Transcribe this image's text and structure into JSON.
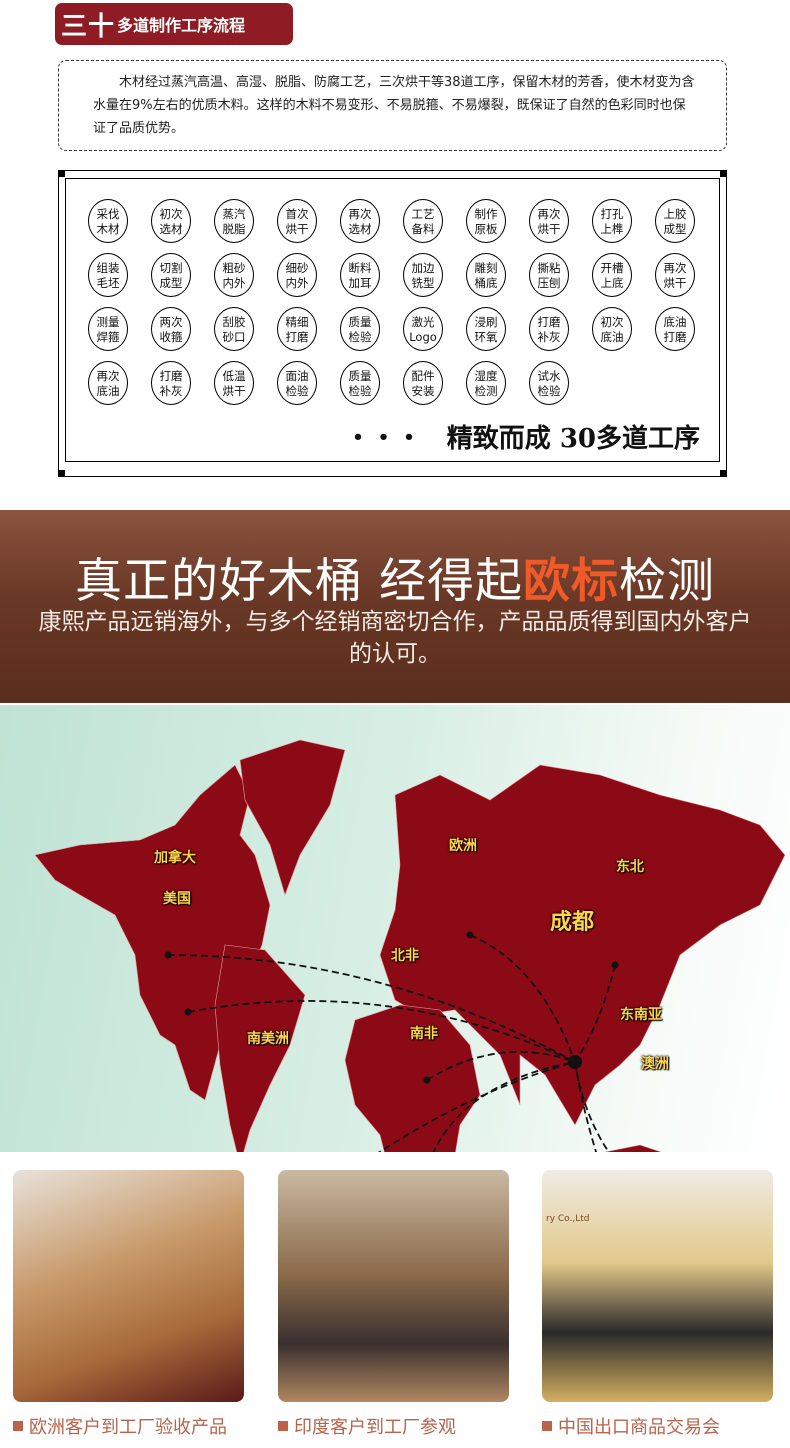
{
  "section_title": {
    "big": "三十",
    "small": "多道制作工序流程"
  },
  "intro_text": "木材经过蒸汽高温、高湿、脱脂、防腐工艺，三次烘干等38道工序，保留木材的芳香，使木材变为含水量在9%左右的优质木料。这样的木料不易变形、不易脱箍、不易爆裂，既保证了自然的色彩同时也保证了品质优势。",
  "steps": [
    [
      "采伐",
      "木材"
    ],
    [
      "初次",
      "选材"
    ],
    [
      "蒸汽",
      "脱脂"
    ],
    [
      "首次",
      "烘干"
    ],
    [
      "再次",
      "选材"
    ],
    [
      "工艺",
      "备料"
    ],
    [
      "制作",
      "原板"
    ],
    [
      "再次",
      "烘干"
    ],
    [
      "打孔",
      "上榫"
    ],
    [
      "上胶",
      "成型"
    ],
    [
      "组装",
      "毛坯"
    ],
    [
      "切割",
      "成型"
    ],
    [
      "粗砂",
      "内外"
    ],
    [
      "细砂",
      "内外"
    ],
    [
      "断料",
      "加耳"
    ],
    [
      "加边",
      "铣型"
    ],
    [
      "雕刻",
      "桶底"
    ],
    [
      "撕粘",
      "压刨"
    ],
    [
      "开槽",
      "上底"
    ],
    [
      "再次",
      "烘干"
    ],
    [
      "测量",
      "焊箍"
    ],
    [
      "两次",
      "收箍"
    ],
    [
      "刮胶",
      "砂口"
    ],
    [
      "精细",
      "打磨"
    ],
    [
      "质量",
      "检验"
    ],
    [
      "激光",
      "Logo"
    ],
    [
      "浸刷",
      "环氧"
    ],
    [
      "打磨",
      "补灰"
    ],
    [
      "初次",
      "底油"
    ],
    [
      "底油",
      "打磨"
    ],
    [
      "再次",
      "底油"
    ],
    [
      "打磨",
      "补灰"
    ],
    [
      "低温",
      "烘干"
    ],
    [
      "面油",
      "检验"
    ],
    [
      "质量",
      "检验"
    ],
    [
      "配件",
      "安装"
    ],
    [
      "湿度",
      "检测"
    ],
    [
      "试水",
      "检验"
    ]
  ],
  "slogan": {
    "dots": "•••",
    "text": "精致而成  30多道工序"
  },
  "banner": {
    "headline_pre": "真正的好木桶 经得起",
    "headline_highlight": "欧标",
    "headline_post": "检测",
    "subtext": "康熙产品远销海外，与多个经销商密切合作，产品品质得到国内外客户的认可。",
    "highlight_color": "#f05a28",
    "background_color": "#6a3826"
  },
  "map": {
    "hub": "成都",
    "destinations": [
      "加拿大",
      "美国",
      "欧洲",
      "东北",
      "北非",
      "南非",
      "南美洲",
      "东南亚",
      "澳洲"
    ],
    "land_color": "#8b0a16",
    "label_color": "#ffd34a"
  },
  "photos": [
    {
      "caption": "欧洲客户到工厂验收产品"
    },
    {
      "caption": "印度客户到工厂参观"
    },
    {
      "caption": "中国出口商品交易会"
    }
  ],
  "photo_sign_text": "ry Co.,Ltd"
}
